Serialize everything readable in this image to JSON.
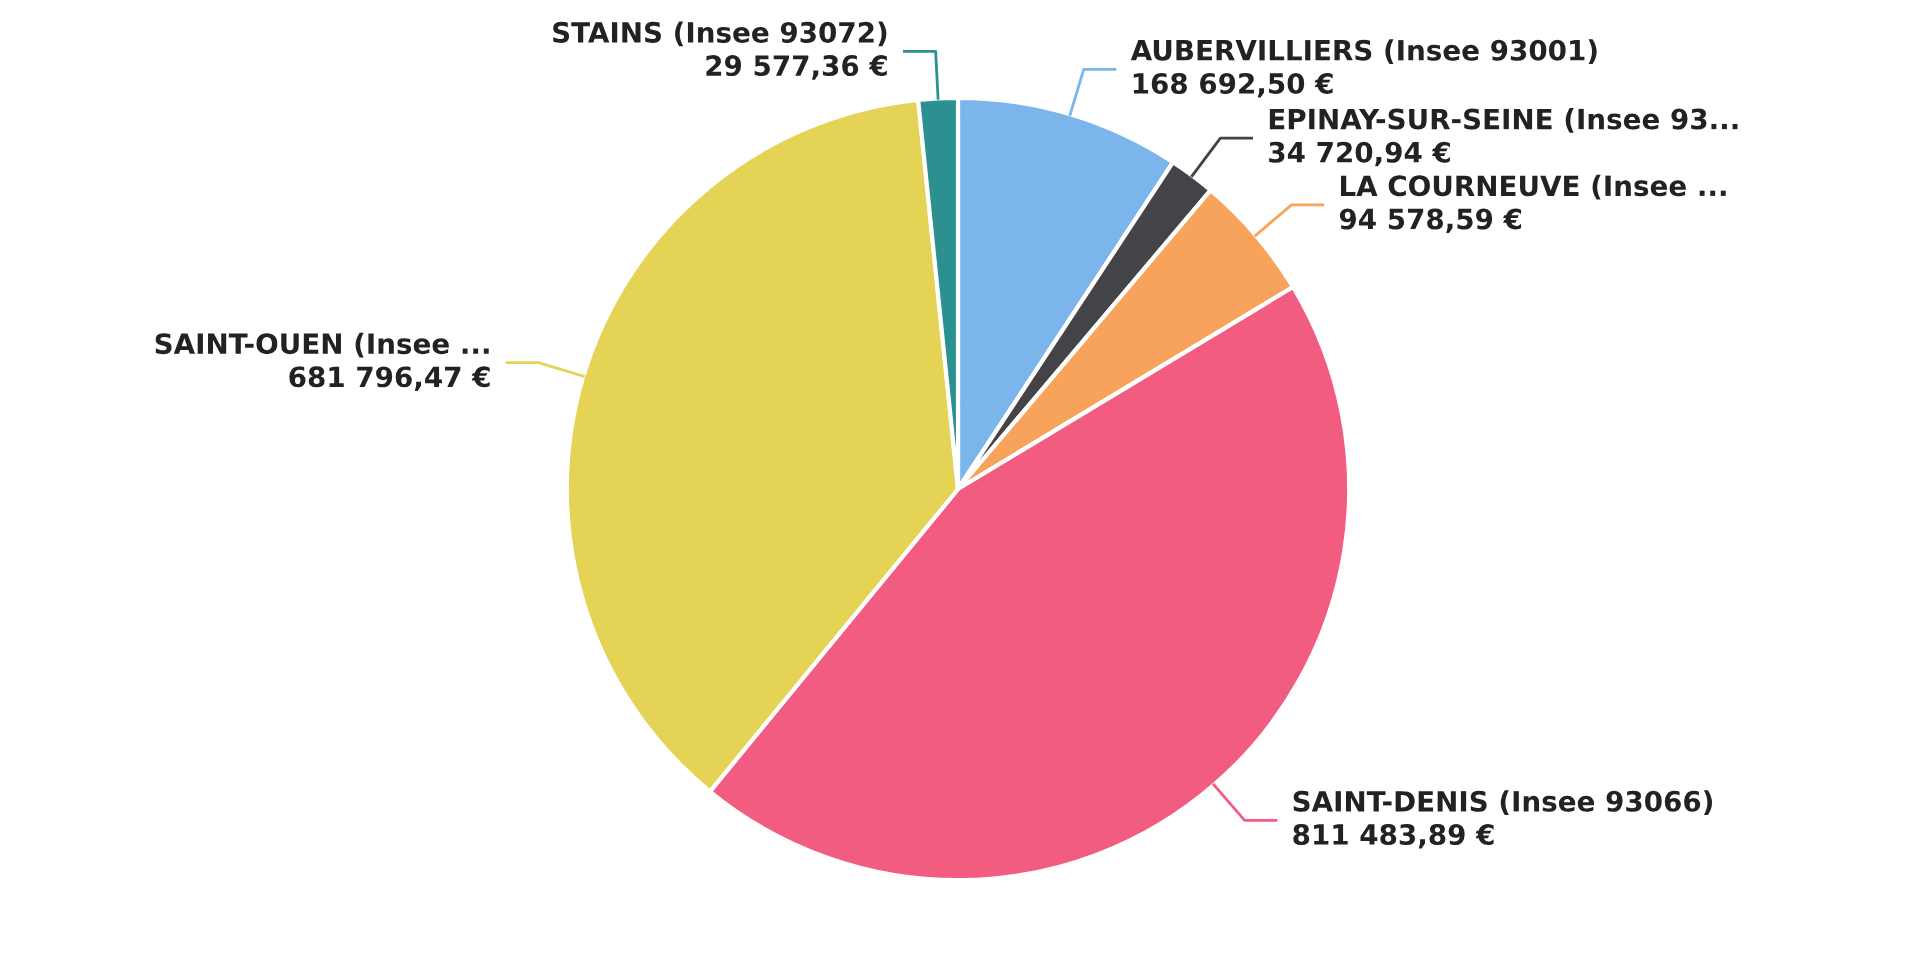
{
  "chart_data": {
    "type": "pie",
    "categories": [
      "AUBERVILLIERS (Insee 93001)",
      "EPINAY-SUR-SEINE (Insee 93...",
      "LA COURNEUVE (Insee ...",
      "SAINT-DENIS (Insee 93066)",
      "SAINT-OUEN (Insee ...",
      "STAINS (Insee 93072)"
    ],
    "values": [
      168692.5,
      34720.94,
      94578.59,
      811483.89,
      681796.47,
      29577.36
    ],
    "value_labels": [
      "168 692,50 €",
      "34 720,94 €",
      "94 578,59 €",
      "811 483,89 €",
      "681 796,47 €",
      "29 577,36 €"
    ],
    "colors": [
      "#7cb5ec",
      "#434348",
      "#f7a35c",
      "#f15c80",
      "#e4d354",
      "#2b908f"
    ],
    "legend": false
  }
}
